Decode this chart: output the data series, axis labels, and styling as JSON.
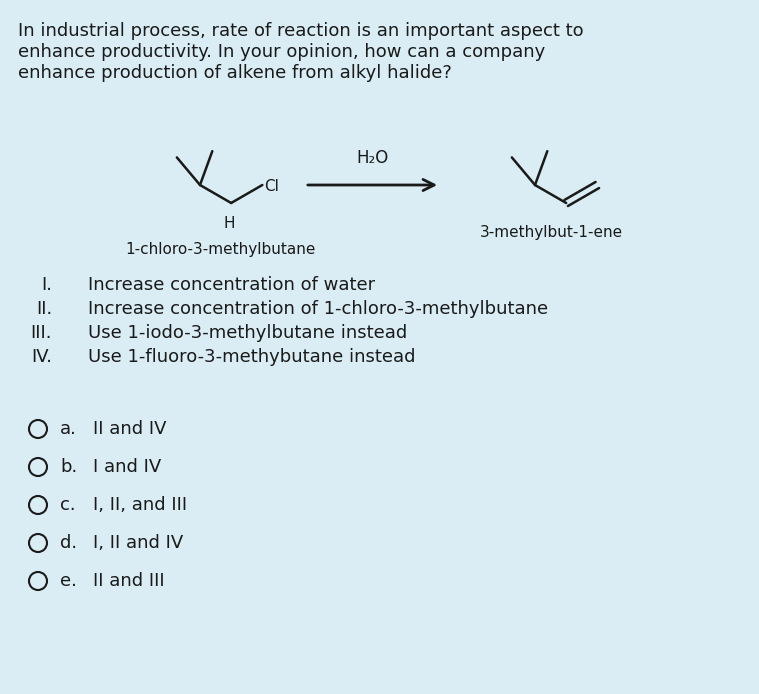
{
  "background_color": "#daedf4",
  "title_lines": [
    "In industrial process, rate of reaction is an important aspect to",
    "enhance productivity. In your opinion, how can a company",
    "enhance production of alkene from alkyl halide?"
  ],
  "title_fontsize": 13.0,
  "roman_items_nums": [
    "I.",
    "II.",
    "III.",
    "IV."
  ],
  "roman_items_text": [
    "Increase concentration of water",
    "Increase concentration of 1-chloro-3-methylbutane",
    "Use 1-iodo-3-methylbutane instead",
    "Use 1-fluoro-3-methybutane instead"
  ],
  "choices": [
    [
      "a.",
      "II and IV"
    ],
    [
      "b.",
      "I and IV"
    ],
    [
      "c.",
      "I, II, and III"
    ],
    [
      "d.",
      "I, II and IV"
    ],
    [
      "e.",
      "II and III"
    ]
  ],
  "label_reactant": "1-chloro-3-methylbutane",
  "label_product": "3-methylbut-1-ene",
  "label_reagent": "H₂O",
  "text_color": "#1a1a1a",
  "font_family": "DejaVu Sans"
}
